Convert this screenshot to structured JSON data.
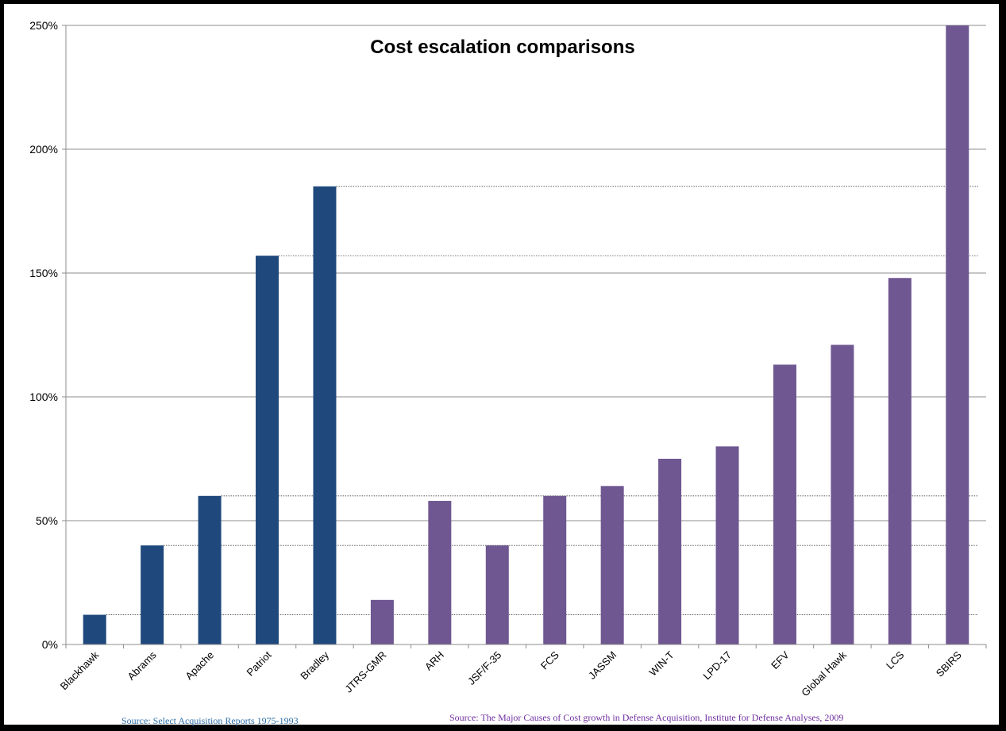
{
  "chart_data": {
    "type": "bar",
    "title": "Cost escalation comparisons",
    "categories": [
      "Blackhawk",
      "Abrams",
      "Apache",
      "Patriot",
      "Bradley",
      "JTRS-GMR",
      "ARH",
      "JSF/F-35",
      "FCS",
      "JASSM",
      "WIN-T",
      "LPD-17",
      "EFV",
      "Global Hawk",
      "LCS",
      "SBIRS"
    ],
    "values": [
      12,
      40,
      60,
      157,
      185,
      18,
      58,
      40,
      60,
      64,
      75,
      80,
      113,
      121,
      148,
      250
    ],
    "bar_colors": [
      "#1f497d",
      "#1f497d",
      "#1f497d",
      "#1f497d",
      "#1f497d",
      "#6f5791",
      "#6f5791",
      "#6f5791",
      "#6f5791",
      "#6f5791",
      "#6f5791",
      "#6f5791",
      "#6f5791",
      "#6f5791",
      "#6f5791",
      "#6f5791"
    ],
    "ylim": [
      0,
      250
    ],
    "yticks": [
      0,
      50,
      100,
      150,
      200,
      250
    ],
    "ytick_labels": [
      "0%",
      "50%",
      "100%",
      "150%",
      "200%",
      "250%"
    ],
    "reference_lines": [
      12,
      40,
      60,
      157,
      185
    ],
    "xlabel": "",
    "ylabel": "",
    "grid": true
  },
  "sources": {
    "left": "Source:  Select Acquisition Reports 1975-1993",
    "right": "Source:  The Major Causes of Cost growth in Defense Acquisition, Institute for Defense Analyses, 2009"
  }
}
